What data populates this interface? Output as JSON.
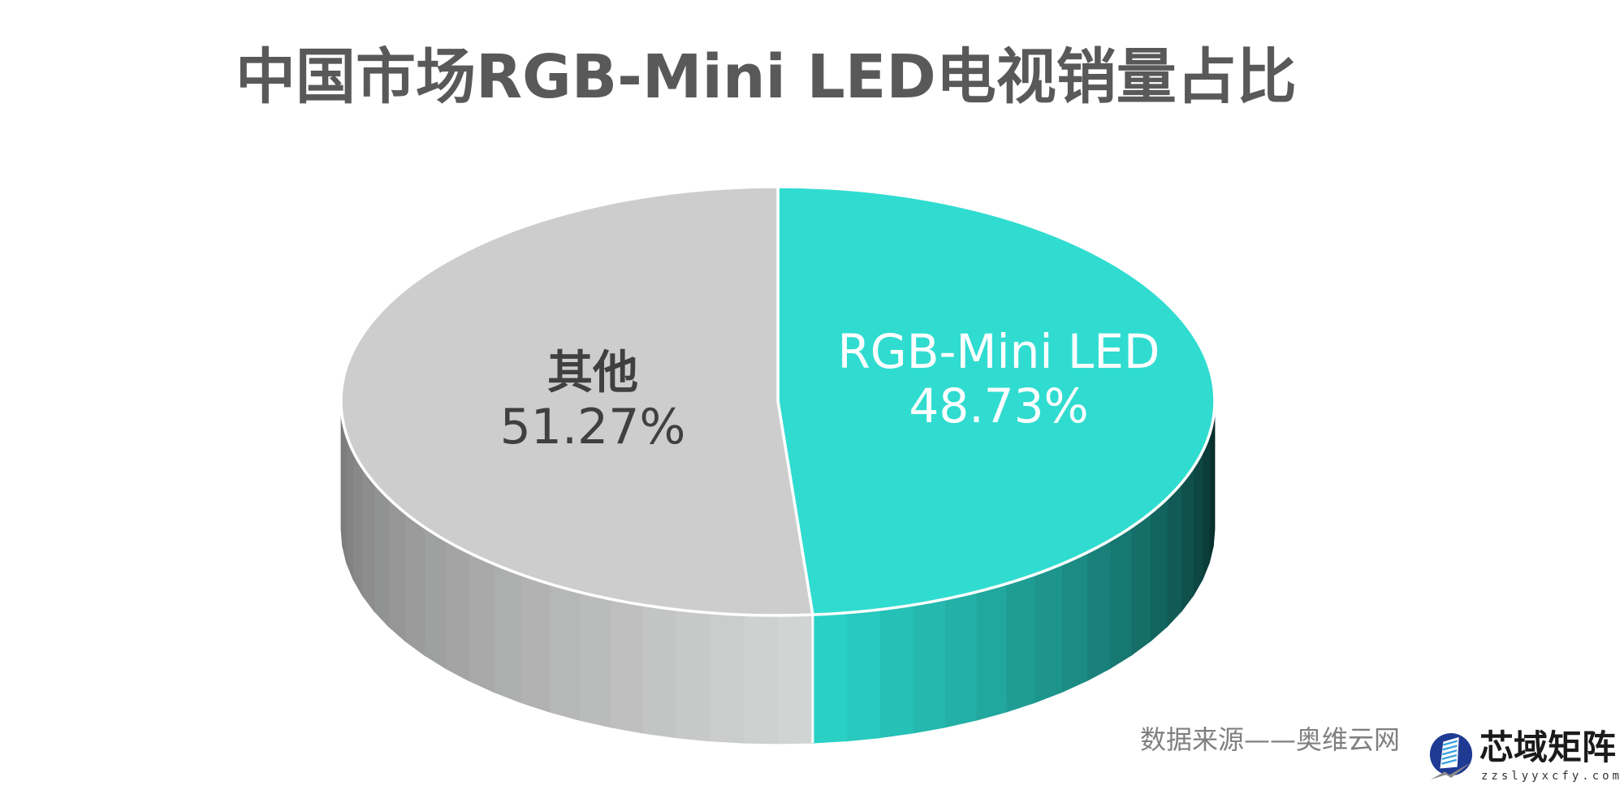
{
  "chart_data": {
    "type": "pie",
    "variant": "3d",
    "title": "中国市场RGB-Mini LED电视销量占比",
    "categories": [
      "RGB-Mini LED",
      "其他"
    ],
    "values": [
      48.73,
      51.27
    ],
    "unit": "%",
    "series": [
      {
        "name": "RGB-Mini LED",
        "value": 48.73,
        "label": "48.73%",
        "color": "#30dcd0"
      },
      {
        "name": "其他",
        "value": 51.27,
        "label": "51.27%",
        "color": "#cdcdcd"
      }
    ],
    "start_angle": "12 o'clock, clockwise",
    "legend": "none (labels inside slices)",
    "annotations": [
      "数据来源——奥维云网"
    ]
  },
  "title": "中国市场RGB-Mini LED电视销量占比",
  "slices": {
    "rgb": {
      "name": "RGB-Mini LED",
      "value": "48.73%"
    },
    "other": {
      "name": "其他",
      "value": "51.27%"
    }
  },
  "source": "数据来源——奥维云网",
  "watermark": {
    "name": "芯域矩阵",
    "url": "zzslyyxcfy.com"
  },
  "colors": {
    "rgb_top": "#30dcd0",
    "rgb_side_dark": "#062220",
    "other_top": "#cdcdcd",
    "other_side_dark": "#777777",
    "title": "#595959",
    "source": "#7f7f7f"
  }
}
